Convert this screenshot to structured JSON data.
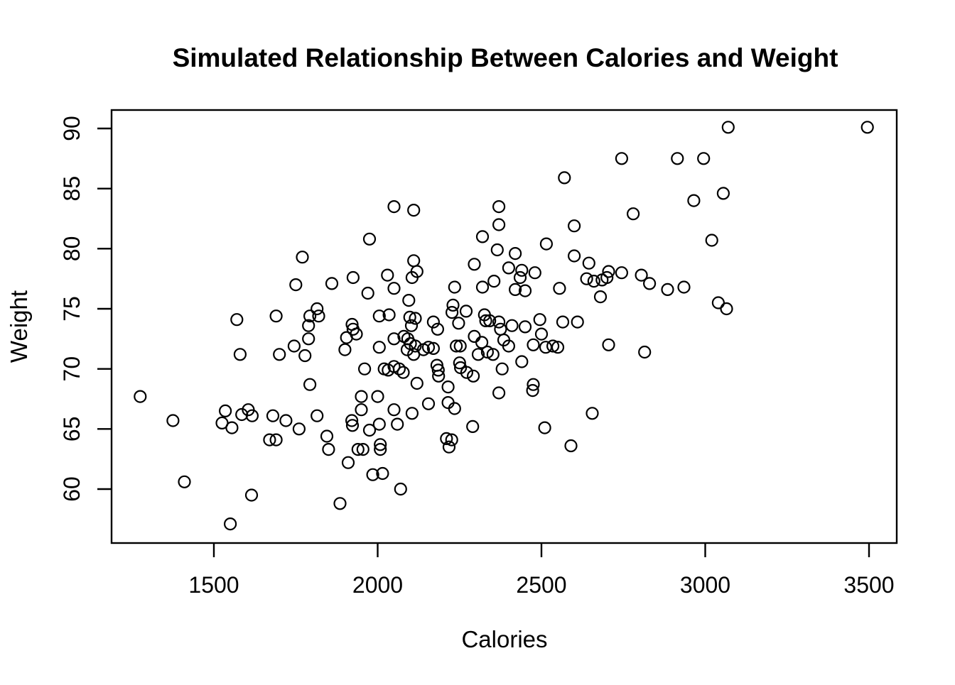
{
  "chart_data": {
    "type": "scatter",
    "title": "Simulated Relationship Between Calories and Weight",
    "xlabel": "Calories",
    "ylabel": "Weight",
    "x_axis": {
      "ticks": [
        1500,
        2000,
        2500,
        3000,
        3500
      ],
      "range_shown": [
        1188,
        3584
      ]
    },
    "y_axis": {
      "ticks": [
        60,
        65,
        70,
        75,
        80,
        85,
        90
      ],
      "range_shown": [
        55.5,
        91.5
      ]
    },
    "grid": false,
    "legend": false,
    "marker": {
      "shape": "open-circle",
      "color": "#000000",
      "fill": "none"
    },
    "background_color": "#ffffff",
    "foreground_color": "#000000",
    "points": [
      [
        3070,
        90.1
      ],
      [
        3495,
        90.1
      ],
      [
        2745,
        87.5
      ],
      [
        2915,
        87.5
      ],
      [
        2995,
        87.5
      ],
      [
        2570,
        85.9
      ],
      [
        3055,
        84.6
      ],
      [
        2965,
        84.0
      ],
      [
        2050,
        83.5
      ],
      [
        2110,
        83.2
      ],
      [
        2370,
        83.5
      ],
      [
        2370,
        82.0
      ],
      [
        2780,
        82.9
      ],
      [
        2320,
        81.0
      ],
      [
        2600,
        81.9
      ],
      [
        1975,
        80.8
      ],
      [
        2515,
        80.4
      ],
      [
        3020,
        80.7
      ],
      [
        2365,
        79.9
      ],
      [
        1770,
        79.3
      ],
      [
        2110,
        79.0
      ],
      [
        2420,
        79.6
      ],
      [
        2600,
        79.4
      ],
      [
        2295,
        78.7
      ],
      [
        2645,
        78.8
      ],
      [
        2400,
        78.4
      ],
      [
        2120,
        78.1
      ],
      [
        2440,
        78.2
      ],
      [
        2705,
        78.1
      ],
      [
        2435,
        77.6
      ],
      [
        2480,
        78.0
      ],
      [
        2745,
        78.0
      ],
      [
        2805,
        77.8
      ],
      [
        2105,
        77.6
      ],
      [
        2030,
        77.8
      ],
      [
        1925,
        77.6
      ],
      [
        1750,
        77.0
      ],
      [
        1860,
        77.1
      ],
      [
        2638,
        77.5
      ],
      [
        2660,
        77.3
      ],
      [
        2685,
        77.4
      ],
      [
        2700,
        77.6
      ],
      [
        2830,
        77.1
      ],
      [
        2355,
        77.3
      ],
      [
        2235,
        76.8
      ],
      [
        2320,
        76.8
      ],
      [
        2420,
        76.6
      ],
      [
        2450,
        76.5
      ],
      [
        2555,
        76.7
      ],
      [
        2885,
        76.6
      ],
      [
        2935,
        76.8
      ],
      [
        1970,
        76.3
      ],
      [
        2050,
        76.7
      ],
      [
        2680,
        76.0
      ],
      [
        2095,
        75.7
      ],
      [
        1815,
        75.0
      ],
      [
        1793,
        74.4
      ],
      [
        1820,
        74.4
      ],
      [
        1789,
        73.6
      ],
      [
        1690,
        74.4
      ],
      [
        1570,
        74.1
      ],
      [
        1922,
        73.7
      ],
      [
        2005,
        74.4
      ],
      [
        2035,
        74.5
      ],
      [
        2098,
        74.3
      ],
      [
        2115,
        74.2
      ],
      [
        2103,
        73.6
      ],
      [
        2170,
        73.9
      ],
      [
        2183,
        73.3
      ],
      [
        2230,
        75.3
      ],
      [
        2227,
        74.7
      ],
      [
        2270,
        74.8
      ],
      [
        2247,
        73.8
      ],
      [
        2326,
        74.5
      ],
      [
        2330,
        74.0
      ],
      [
        2342,
        74.0
      ],
      [
        2370,
        73.9
      ],
      [
        2375,
        73.3
      ],
      [
        2410,
        73.6
      ],
      [
        2450,
        73.5
      ],
      [
        2495,
        74.1
      ],
      [
        2565,
        73.9
      ],
      [
        2610,
        73.9
      ],
      [
        3040,
        75.5
      ],
      [
        3065,
        75.0
      ],
      [
        1789,
        72.5
      ],
      [
        1745,
        71.9
      ],
      [
        1778,
        71.1
      ],
      [
        1700,
        71.2
      ],
      [
        1580,
        71.2
      ],
      [
        1905,
        72.6
      ],
      [
        1935,
        72.9
      ],
      [
        1925,
        73.3
      ],
      [
        1900,
        71.6
      ],
      [
        2005,
        71.8
      ],
      [
        2050,
        72.5
      ],
      [
        2080,
        72.7
      ],
      [
        2092,
        72.5
      ],
      [
        2100,
        72.1
      ],
      [
        2115,
        71.9
      ],
      [
        2090,
        71.6
      ],
      [
        2110,
        71.2
      ],
      [
        2140,
        71.6
      ],
      [
        2155,
        71.8
      ],
      [
        2170,
        71.7
      ],
      [
        2240,
        71.9
      ],
      [
        2252,
        71.9
      ],
      [
        2295,
        72.7
      ],
      [
        2318,
        72.2
      ],
      [
        2307,
        71.2
      ],
      [
        2335,
        71.4
      ],
      [
        2352,
        71.2
      ],
      [
        2385,
        72.4
      ],
      [
        2400,
        71.9
      ],
      [
        2475,
        72.0
      ],
      [
        2500,
        72.9
      ],
      [
        2513,
        71.8
      ],
      [
        2535,
        71.9
      ],
      [
        2550,
        71.8
      ],
      [
        2705,
        72.0
      ],
      [
        2815,
        71.4
      ],
      [
        1960,
        70.0
      ],
      [
        2020,
        70.0
      ],
      [
        2032,
        69.9
      ],
      [
        2050,
        70.2
      ],
      [
        2066,
        70.0
      ],
      [
        2078,
        69.7
      ],
      [
        2181,
        70.3
      ],
      [
        2185,
        69.9
      ],
      [
        2186,
        69.4
      ],
      [
        2250,
        70.5
      ],
      [
        2253,
        70.1
      ],
      [
        2272,
        69.7
      ],
      [
        2292,
        69.4
      ],
      [
        2380,
        70.0
      ],
      [
        2440,
        70.6
      ],
      [
        1950,
        67.7
      ],
      [
        2000,
        67.7
      ],
      [
        2120,
        68.8
      ],
      [
        2215,
        68.5
      ],
      [
        2370,
        68.0
      ],
      [
        2475,
        68.7
      ],
      [
        2473,
        68.2
      ],
      [
        1275,
        67.7
      ],
      [
        1793,
        68.7
      ],
      [
        1535,
        66.5
      ],
      [
        1525,
        65.5
      ],
      [
        1555,
        65.1
      ],
      [
        1585,
        66.2
      ],
      [
        1605,
        66.6
      ],
      [
        1617,
        66.1
      ],
      [
        1680,
        66.1
      ],
      [
        1720,
        65.7
      ],
      [
        1760,
        65.0
      ],
      [
        1815,
        66.1
      ],
      [
        1375,
        65.7
      ],
      [
        1950,
        66.6
      ],
      [
        2050,
        66.6
      ],
      [
        2105,
        66.3
      ],
      [
        2155,
        67.1
      ],
      [
        2215,
        67.2
      ],
      [
        2235,
        66.7
      ],
      [
        1921,
        65.7
      ],
      [
        1923,
        65.3
      ],
      [
        2005,
        65.4
      ],
      [
        2060,
        65.4
      ],
      [
        1975,
        64.9
      ],
      [
        2290,
        65.2
      ],
      [
        2655,
        66.3
      ],
      [
        2510,
        65.1
      ],
      [
        1670,
        64.1
      ],
      [
        1690,
        64.1
      ],
      [
        1845,
        64.4
      ],
      [
        1850,
        63.3
      ],
      [
        2210,
        64.2
      ],
      [
        2226,
        64.1
      ],
      [
        2218,
        63.5
      ],
      [
        1940,
        63.3
      ],
      [
        1955,
        63.3
      ],
      [
        2008,
        63.7
      ],
      [
        2008,
        63.3
      ],
      [
        2590,
        63.6
      ],
      [
        1910,
        62.2
      ],
      [
        1985,
        61.2
      ],
      [
        2015,
        61.3
      ],
      [
        2070,
        60.0
      ],
      [
        1410,
        60.6
      ],
      [
        1615,
        59.5
      ],
      [
        1885,
        58.8
      ],
      [
        1550,
        57.1
      ]
    ]
  }
}
